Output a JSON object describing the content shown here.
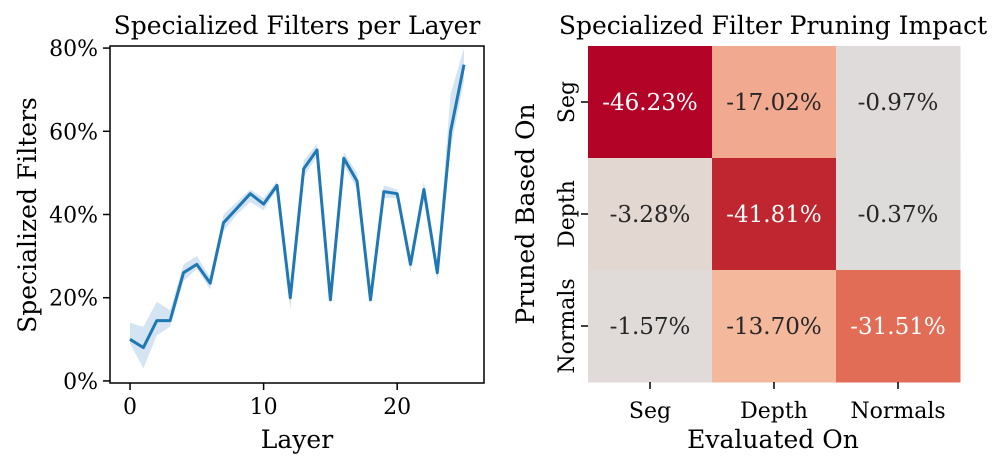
{
  "chart_data": [
    {
      "type": "line",
      "title": "Specialized Filters per Layer",
      "xlabel": "Layer",
      "ylabel": "Specialized Filters",
      "xlim": [
        -1.5,
        26.5
      ],
      "ylim": [
        -0.5,
        80.5
      ],
      "xticks": [
        0,
        10,
        20
      ],
      "xtick_labels": [
        "0",
        "10",
        "20"
      ],
      "yticks": [
        0,
        20,
        40,
        60,
        80
      ],
      "ytick_labels": [
        "0%",
        "20%",
        "40%",
        "60%",
        "80%"
      ],
      "color": "#1f77b4",
      "band_color": "#c6dbef",
      "series": [
        {
          "name": "Specialized Filters",
          "x": [
            0,
            1,
            2,
            3,
            4,
            5,
            6,
            7,
            8,
            9,
            10,
            11,
            12,
            13,
            14,
            15,
            16,
            17,
            18,
            19,
            20,
            21,
            22,
            23,
            24,
            25
          ],
          "values": [
            10,
            8,
            14.5,
            14.5,
            26,
            28,
            23.5,
            38,
            41.5,
            45,
            42.5,
            47,
            20,
            51,
            55.5,
            19.5,
            53.5,
            48,
            19.5,
            45.5,
            45,
            28,
            46,
            26,
            60,
            76
          ],
          "lower": [
            9,
            3,
            11,
            13,
            24,
            27,
            22,
            36,
            40,
            43,
            41,
            46,
            17,
            49,
            54,
            19,
            52,
            46,
            19,
            44,
            44,
            26,
            44,
            24,
            56,
            72
          ],
          "upper": [
            14,
            13,
            19,
            17,
            28,
            30,
            25,
            40,
            43,
            46,
            44,
            48,
            22,
            53,
            57,
            20,
            55,
            50,
            21,
            47,
            46,
            30,
            48,
            28,
            69,
            80
          ]
        }
      ]
    },
    {
      "type": "heatmap",
      "title": "Specialized Filter Pruning Impact",
      "xlabel": "Evaluated On",
      "ylabel": "Pruned Based On",
      "x_categories": [
        "Seg",
        "Depth",
        "Normals"
      ],
      "y_categories": [
        "Seg",
        "Depth",
        "Normals"
      ],
      "values": [
        [
          -46.23,
          -17.02,
          -0.97
        ],
        [
          -3.28,
          -41.81,
          -0.37
        ],
        [
          -1.57,
          -13.7,
          -31.51
        ]
      ],
      "labels": [
        [
          "-46.23%",
          "-17.02%",
          "-0.97%"
        ],
        [
          "-3.28%",
          "-41.81%",
          "-0.37%"
        ],
        [
          "-1.57%",
          "-13.70%",
          "-31.51%"
        ]
      ],
      "colormap": "coolwarm"
    }
  ]
}
